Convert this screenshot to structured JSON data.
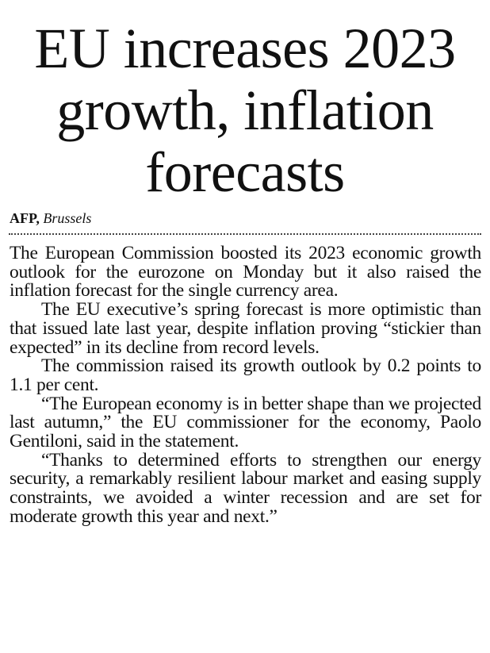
{
  "article": {
    "headline": "EU increases 2023 growth, inflation forecasts",
    "byline": {
      "agency": "AFP,",
      "location": "Brussels"
    },
    "paragraphs": [
      "The European Commission boosted its 2023 economic growth outlook for the eurozone on Monday but it also raised the inflation forecast for the single currency area.",
      "The EU executive’s spring forecast is more optimistic than that issued late last year, despite inflation proving “stickier than expected” in its decline from record levels.",
      "The commission raised its growth outlook by 0.2 points to 1.1 per cent.",
      "“The European economy is in better shape than we projected last autumn,” the EU commissioner for the economy, Paolo Gentiloni, said in the statement.",
      "“Thanks to determined efforts to strengthen our energy security, a remarkably resilient labour market and easing supply constraints, we avoided a winter recession and are set for moderate growth this year and next.”"
    ]
  }
}
